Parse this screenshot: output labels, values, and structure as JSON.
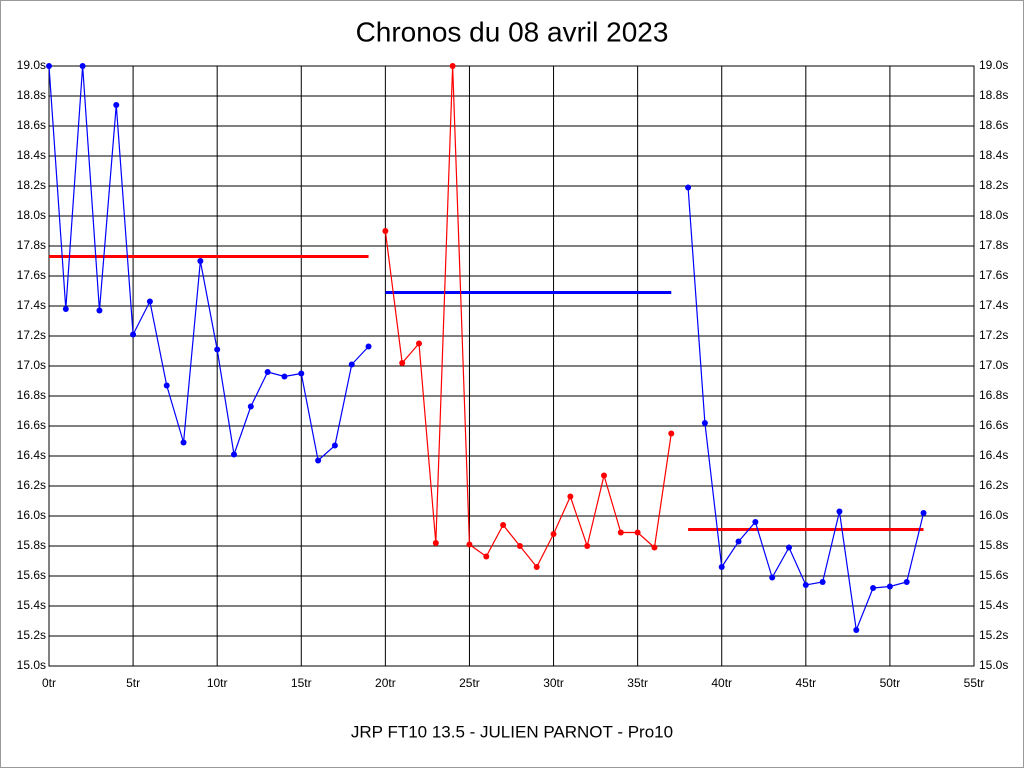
{
  "chart_data": {
    "type": "line",
    "title": "Chronos du 08 avril 2023",
    "footer": "JRP FT10 13.5 - JULIEN PARNOT - Pro10",
    "grid": true,
    "xlim": [
      0,
      55
    ],
    "xticks": [
      {
        "value": 0,
        "label": "0tr"
      },
      {
        "value": 5,
        "label": "5tr"
      },
      {
        "value": 10,
        "label": "10tr"
      },
      {
        "value": 15,
        "label": "15tr"
      },
      {
        "value": 20,
        "label": "20tr"
      },
      {
        "value": 25,
        "label": "25tr"
      },
      {
        "value": 30,
        "label": "30tr"
      },
      {
        "value": 35,
        "label": "35tr"
      },
      {
        "value": 40,
        "label": "40tr"
      },
      {
        "value": 45,
        "label": "45tr"
      },
      {
        "value": 50,
        "label": "50tr"
      },
      {
        "value": 55,
        "label": "55tr"
      }
    ],
    "ylim": [
      15.0,
      19.0
    ],
    "yticks": [
      {
        "value": 15.0,
        "label": "15.0s"
      },
      {
        "value": 15.2,
        "label": "15.2s"
      },
      {
        "value": 15.4,
        "label": "15.4s"
      },
      {
        "value": 15.6,
        "label": "15.6s"
      },
      {
        "value": 15.8,
        "label": "15.8s"
      },
      {
        "value": 16.0,
        "label": "16.0s"
      },
      {
        "value": 16.2,
        "label": "16.2s"
      },
      {
        "value": 16.4,
        "label": "16.4s"
      },
      {
        "value": 16.6,
        "label": "16.6s"
      },
      {
        "value": 16.8,
        "label": "16.8s"
      },
      {
        "value": 17.0,
        "label": "17.0s"
      },
      {
        "value": 17.2,
        "label": "17.2s"
      },
      {
        "value": 17.4,
        "label": "17.4s"
      },
      {
        "value": 17.6,
        "label": "17.6s"
      },
      {
        "value": 17.8,
        "label": "17.8s"
      },
      {
        "value": 18.0,
        "label": "18.0s"
      },
      {
        "value": 18.2,
        "label": "18.2s"
      },
      {
        "value": 18.4,
        "label": "18.4s"
      },
      {
        "value": 18.6,
        "label": "18.6s"
      },
      {
        "value": 18.8,
        "label": "18.8s"
      },
      {
        "value": 19.0,
        "label": "19.0s"
      }
    ],
    "series": [
      {
        "color": "#0000ff",
        "x": [
          0,
          1,
          2,
          3,
          4,
          5,
          6,
          7,
          8,
          9,
          10,
          11,
          12,
          13,
          14,
          15,
          16,
          17,
          18,
          19
        ],
        "values": [
          19.0,
          17.38,
          19.0,
          17.37,
          18.74,
          17.21,
          17.43,
          16.87,
          16.49,
          17.7,
          17.11,
          16.41,
          16.73,
          16.96,
          16.93,
          16.95,
          16.37,
          16.47,
          17.01,
          17.13
        ]
      },
      {
        "color": "#ff0000",
        "x": [
          20,
          21,
          22,
          23,
          24,
          25,
          26,
          27,
          28,
          29,
          30,
          31,
          32,
          33,
          34,
          35,
          36,
          37
        ],
        "values": [
          17.9,
          17.02,
          17.15,
          15.82,
          19.0,
          15.81,
          15.73,
          15.94,
          15.8,
          15.66,
          15.88,
          16.13,
          15.8,
          16.27,
          15.89,
          15.89,
          15.79,
          16.55
        ]
      },
      {
        "color": "#0000ff",
        "x": [
          38,
          39,
          40,
          41,
          42,
          43,
          44,
          45,
          46,
          47,
          48,
          49,
          50,
          51,
          52
        ],
        "values": [
          18.19,
          16.62,
          15.66,
          15.83,
          15.96,
          15.59,
          15.79,
          15.54,
          15.56,
          16.03,
          15.24,
          15.52,
          15.53,
          15.56,
          16.02
        ]
      }
    ],
    "averages": [
      {
        "color": "#ff0000",
        "value": 17.73,
        "x": [
          0,
          19
        ]
      },
      {
        "color": "#0000ff",
        "value": 17.49,
        "x": [
          20,
          37
        ]
      },
      {
        "color": "#ff0000",
        "value": 15.91,
        "x": [
          38,
          52
        ]
      }
    ]
  }
}
